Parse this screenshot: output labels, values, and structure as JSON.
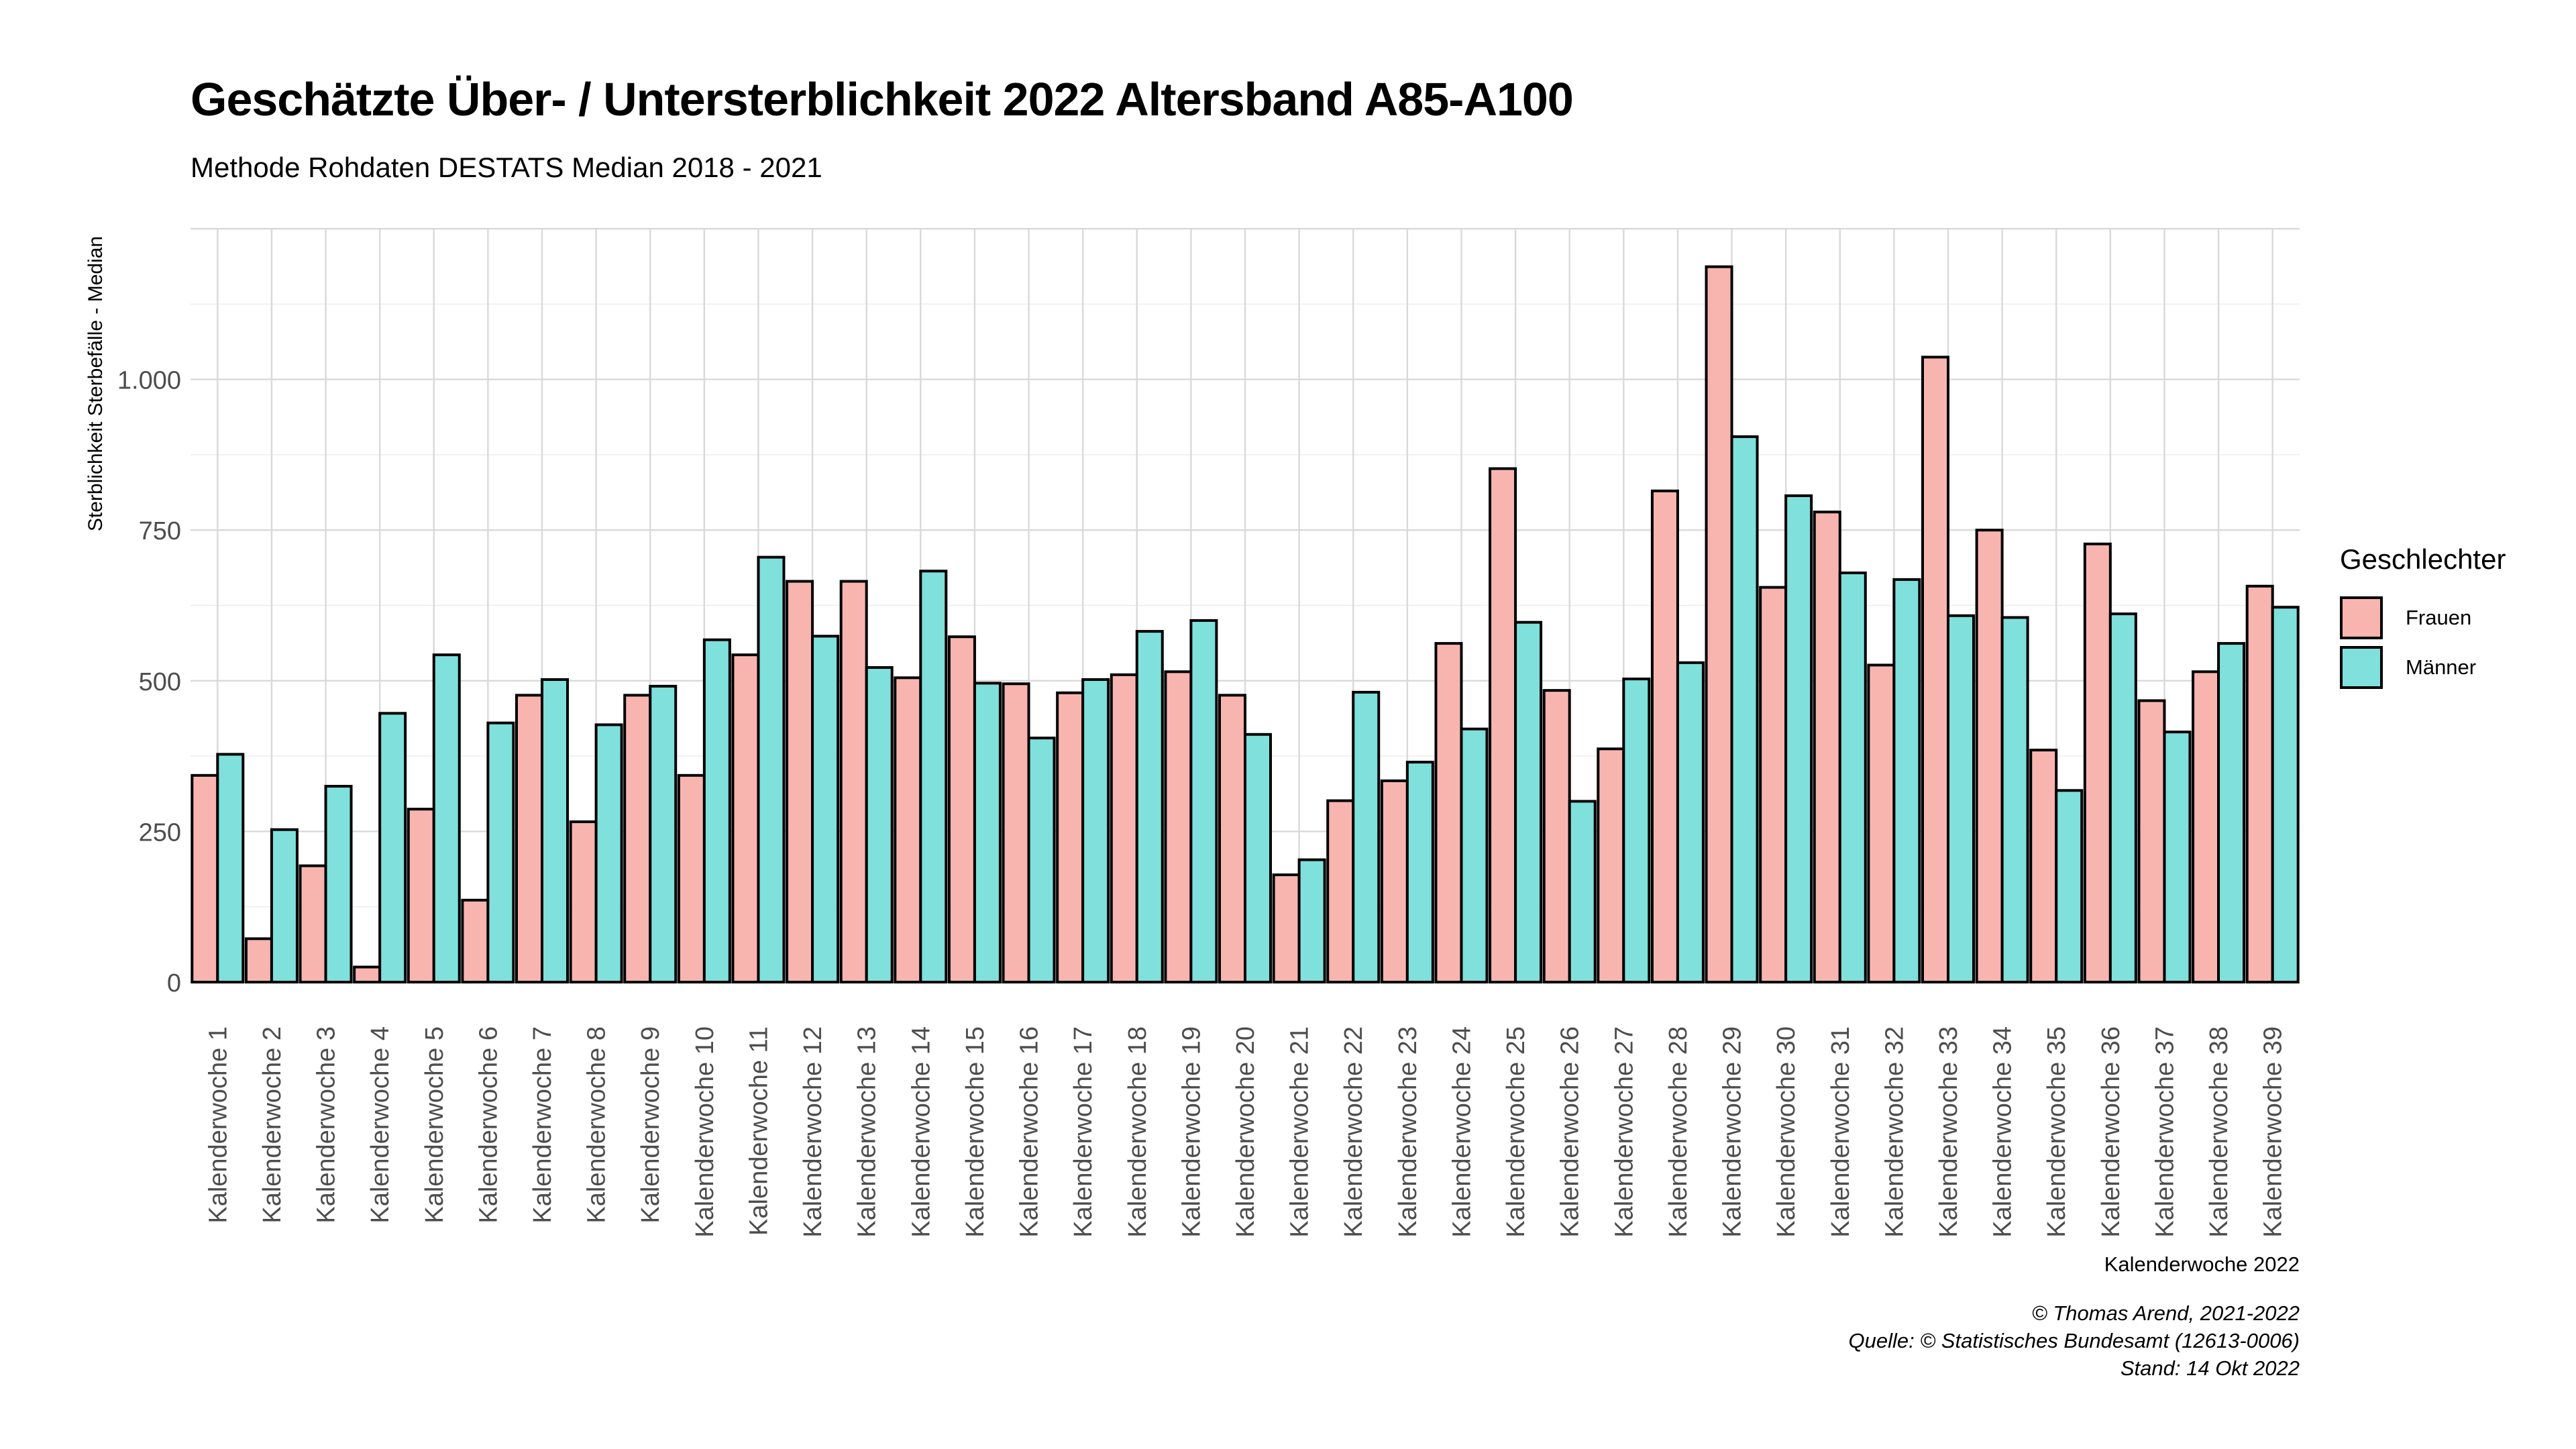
{
  "chart_data": {
    "type": "bar",
    "title": "Geschätzte Über- / Untersterblichkeit 2022 Altersband A85-A100",
    "subtitle": "Methode Rohdaten DESTATS Median 2018 - 2021",
    "xlabel": "Kalenderwoche 2022",
    "ylabel": "Sterblichkeit Sterbefälle - Median",
    "ylim": [
      0,
      1250
    ],
    "yticks": [
      0,
      250,
      500,
      750,
      1000
    ],
    "ytick_labels": [
      "0",
      "250",
      "500",
      "750",
      "1.000"
    ],
    "grid": true,
    "legend_position": "right",
    "legend_title": "Geschlechter",
    "categories": [
      "Kalenderwoche 1",
      "Kalenderwoche 2",
      "Kalenderwoche 3",
      "Kalenderwoche 4",
      "Kalenderwoche 5",
      "Kalenderwoche 6",
      "Kalenderwoche 7",
      "Kalenderwoche 8",
      "Kalenderwoche 9",
      "Kalenderwoche 10",
      "Kalenderwoche 11",
      "Kalenderwoche 12",
      "Kalenderwoche 13",
      "Kalenderwoche 14",
      "Kalenderwoche 15",
      "Kalenderwoche 16",
      "Kalenderwoche 17",
      "Kalenderwoche 18",
      "Kalenderwoche 19",
      "Kalenderwoche 20",
      "Kalenderwoche 21",
      "Kalenderwoche 22",
      "Kalenderwoche 23",
      "Kalenderwoche 24",
      "Kalenderwoche 25",
      "Kalenderwoche 26",
      "Kalenderwoche 27",
      "Kalenderwoche 28",
      "Kalenderwoche 29",
      "Kalenderwoche 30",
      "Kalenderwoche 31",
      "Kalenderwoche 32",
      "Kalenderwoche 33",
      "Kalenderwoche 34",
      "Kalenderwoche 35",
      "Kalenderwoche 36",
      "Kalenderwoche 37",
      "Kalenderwoche 38",
      "Kalenderwoche 39"
    ],
    "series": [
      {
        "name": "Frauen",
        "color": "#f8b5b0",
        "values": [
          343,
          72,
          193,
          25,
          287,
          136,
          476,
          266,
          476,
          343,
          543,
          665,
          665,
          505,
          573,
          495,
          480,
          510,
          515,
          476,
          178,
          301,
          334,
          562,
          852,
          484,
          387,
          815,
          1187,
          655,
          780,
          526,
          1037,
          750,
          385,
          727,
          467,
          515,
          657
        ]
      },
      {
        "name": "Männer",
        "color": "#7fe0dc",
        "values": [
          378,
          253,
          325,
          446,
          543,
          430,
          502,
          427,
          491,
          568,
          705,
          574,
          522,
          682,
          496,
          405,
          502,
          582,
          600,
          411,
          203,
          481,
          365,
          420,
          597,
          300,
          503,
          530,
          905,
          807,
          679,
          668,
          608,
          605,
          318,
          611,
          415,
          562,
          622
        ]
      }
    ]
  },
  "captions": {
    "author": "© Thomas Arend, 2021-2022",
    "source": "Quelle: © Statistisches Bundesamt (12613-0006)",
    "date": "Stand: 14 Okt 2022"
  }
}
